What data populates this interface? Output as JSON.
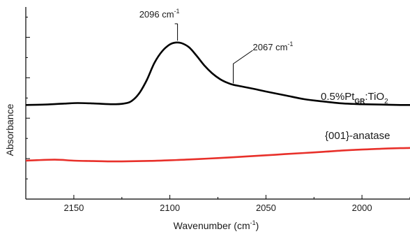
{
  "chart_data": {
    "type": "line",
    "xlabel_main": "Wavenumber (cm",
    "xlabel_sup": "-1",
    "xlabel_close": ")",
    "ylabel": "Absorbance",
    "x_reversed": true,
    "xlim": [
      2175,
      1975
    ],
    "ylim": [
      0,
      1
    ],
    "y_tick_labels_shown": false,
    "x_ticks": [
      2150,
      2100,
      2050,
      2000
    ],
    "x_tick_labels": [
      "2150",
      "2100",
      "2050",
      "2000"
    ],
    "series": [
      {
        "label_pre": "0.5%Pt",
        "label_sub": "GR",
        "label_mid": ":TiO",
        "label_sub2": "2",
        "color": "#000000",
        "x": [
          2175,
          2165,
          2155,
          2148,
          2140,
          2130,
          2124,
          2120,
          2116,
          2112,
          2108,
          2104,
          2100,
          2097,
          2094,
          2090,
          2086,
          2082,
          2078,
          2074,
          2070,
          2067,
          2062,
          2056,
          2050,
          2040,
          2030,
          2020,
          2010,
          2000,
          1990,
          1980,
          1975
        ],
        "y": [
          0.49,
          0.492,
          0.497,
          0.5,
          0.498,
          0.494,
          0.497,
          0.51,
          0.55,
          0.62,
          0.71,
          0.77,
          0.805,
          0.815,
          0.812,
          0.79,
          0.745,
          0.695,
          0.655,
          0.625,
          0.605,
          0.595,
          0.585,
          0.573,
          0.56,
          0.54,
          0.52,
          0.508,
          0.498,
          0.494,
          0.492,
          0.49,
          0.49
        ]
      },
      {
        "label_pre": "{001}-anatase",
        "color": "#e8302a",
        "x": [
          2175,
          2160,
          2150,
          2140,
          2130,
          2120,
          2110,
          2100,
          2090,
          2080,
          2070,
          2060,
          2050,
          2040,
          2030,
          2020,
          2010,
          2000,
          1990,
          1980,
          1975
        ],
        "y": [
          0.2,
          0.205,
          0.2,
          0.198,
          0.196,
          0.197,
          0.199,
          0.202,
          0.206,
          0.211,
          0.216,
          0.222,
          0.228,
          0.234,
          0.24,
          0.246,
          0.253,
          0.258,
          0.262,
          0.265,
          0.266
        ]
      }
    ],
    "annotations": [
      {
        "text_main": "2096 cm",
        "text_sup": "-1",
        "x": 2096
      },
      {
        "text_main": "2067 cm",
        "text_sup": "-1",
        "x": 2067
      }
    ]
  }
}
